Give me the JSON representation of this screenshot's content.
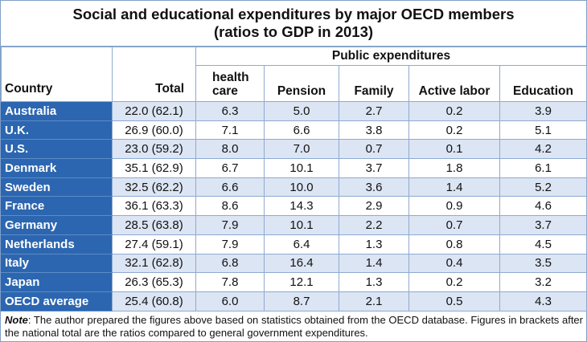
{
  "title_line1": "Social and educational expenditures by major OECD members",
  "title_line2": "(ratios to GDP in 2013)",
  "group_header": "Public expenditures",
  "columns": {
    "country": "Country",
    "total": "Total",
    "health_line1": "health",
    "health_line2": "care",
    "pension": "Pension",
    "family": "Family",
    "active_labor": "Active labor",
    "education": "Education"
  },
  "rows": [
    {
      "country": "Australia",
      "total": "22.0 (62.1)",
      "health": "6.3",
      "pension": "5.0",
      "family": "2.7",
      "active_labor": "0.2",
      "education": "3.9"
    },
    {
      "country": "U.K.",
      "total": "26.9 (60.0)",
      "health": "7.1",
      "pension": "6.6",
      "family": "3.8",
      "active_labor": "0.2",
      "education": "5.1"
    },
    {
      "country": "U.S.",
      "total": "23.0 (59.2)",
      "health": "8.0",
      "pension": "7.0",
      "family": "0.7",
      "active_labor": "0.1",
      "education": "4.2"
    },
    {
      "country": "Denmark",
      "total": "35.1 (62.9)",
      "health": "6.7",
      "pension": "10.1",
      "family": "3.7",
      "active_labor": "1.8",
      "education": "6.1"
    },
    {
      "country": "Sweden",
      "total": "32.5 (62.2)",
      "health": "6.6",
      "pension": "10.0",
      "family": "3.6",
      "active_labor": "1.4",
      "education": "5.2"
    },
    {
      "country": "France",
      "total": "36.1 (63.3)",
      "health": "8.6",
      "pension": "14.3",
      "family": "2.9",
      "active_labor": "0.9",
      "education": "4.6"
    },
    {
      "country": "Germany",
      "total": "28.5 (63.8)",
      "health": "7.9",
      "pension": "10.1",
      "family": "2.2",
      "active_labor": "0.7",
      "education": "3.7"
    },
    {
      "country": "Netherlands",
      "total": "27.4 (59.1)",
      "health": "7.9",
      "pension": "6.4",
      "family": "1.3",
      "active_labor": "0.8",
      "education": "4.5"
    },
    {
      "country": "Italy",
      "total": "32.1 (62.8)",
      "health": "6.8",
      "pension": "16.4",
      "family": "1.4",
      "active_labor": "0.4",
      "education": "3.5"
    },
    {
      "country": "Japan",
      "total": "26.3 (65.3)",
      "health": "7.8",
      "pension": "12.1",
      "family": "1.3",
      "active_labor": "0.2",
      "education": "3.2"
    },
    {
      "country": "OECD average",
      "total": "25.4 (60.8)",
      "health": "6.0",
      "pension": "8.7",
      "family": "2.1",
      "active_labor": "0.5",
      "education": "4.3"
    }
  ],
  "note": {
    "label": "Note",
    "text": ": The author prepared the figures above based on statistics obtained from the OECD database. Figures in brackets after the national total are the ratios compared to general government expenditures."
  },
  "colors": {
    "country_cell_bg": "#2c66b0",
    "stripe_bg": "#dce5f3",
    "border": "#8eaad0"
  }
}
